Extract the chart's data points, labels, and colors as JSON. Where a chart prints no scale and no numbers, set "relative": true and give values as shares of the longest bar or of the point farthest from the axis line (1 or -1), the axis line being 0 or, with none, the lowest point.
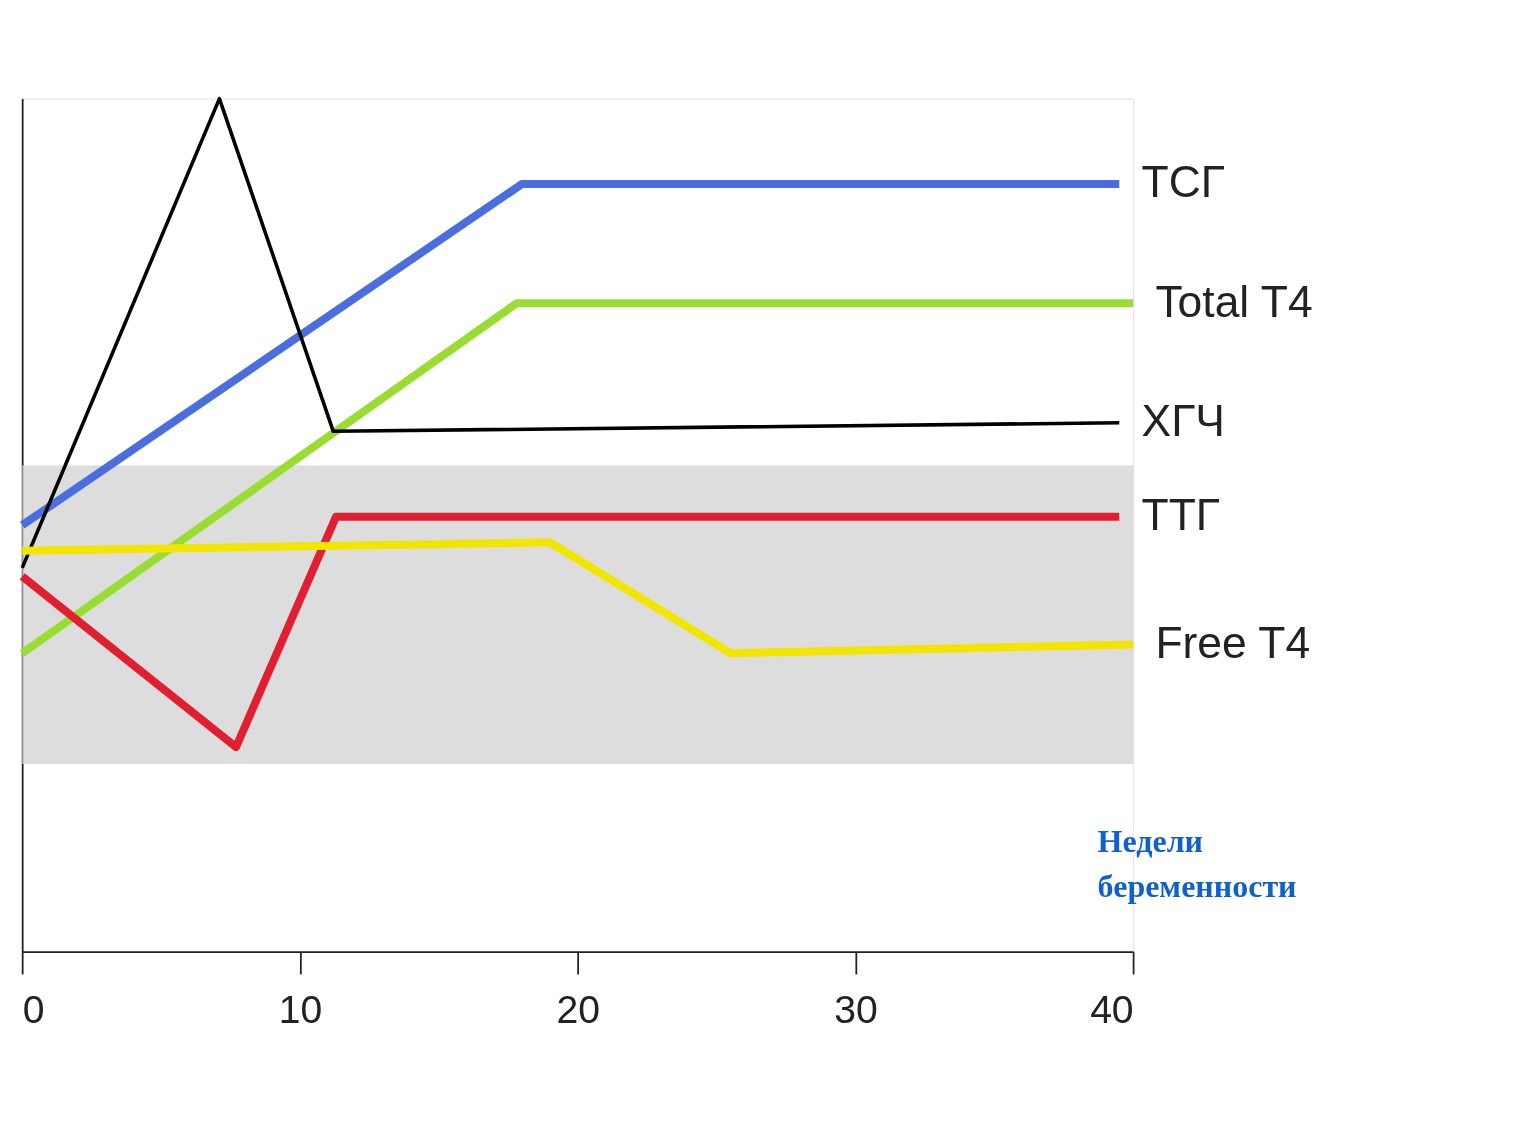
{
  "chart_data": {
    "type": "line",
    "relative": true,
    "xlabel": "Недели беременности",
    "xlim": [
      0,
      40
    ],
    "xticks": [
      0,
      10,
      20,
      30,
      40
    ],
    "grid": false,
    "tick_labels": "x",
    "line_style": "solid",
    "marker": "none",
    "bands": [
      {
        "axis": "y",
        "from": 0.22,
        "to": 0.57,
        "color": "#d4d4d4"
      }
    ],
    "series": [
      {
        "name": "ТСГ",
        "color": "#4a6ee0",
        "x": [
          0,
          18,
          39.5
        ],
        "values": [
          0.5,
          0.9,
          0.9
        ]
      },
      {
        "name": "Total T4",
        "color": "#99dd33",
        "x": [
          0,
          17.8,
          40
        ],
        "values": [
          0.35,
          0.76,
          0.76
        ]
      },
      {
        "name": "ХГЧ",
        "color": "#000000",
        "x": [
          0,
          7.1,
          11.2,
          39.5
        ],
        "values": [
          0.45,
          1.0,
          0.61,
          0.62
        ]
      },
      {
        "name": "ТТГ",
        "color": "#e02030",
        "x": [
          0,
          7.7,
          11.3,
          39.5
        ],
        "values": [
          0.44,
          0.24,
          0.51,
          0.51
        ]
      },
      {
        "name": "Free T4",
        "color": "#f2e500",
        "x": [
          0,
          19,
          25.5,
          40
        ],
        "values": [
          0.47,
          0.48,
          0.35,
          0.36
        ]
      }
    ]
  }
}
